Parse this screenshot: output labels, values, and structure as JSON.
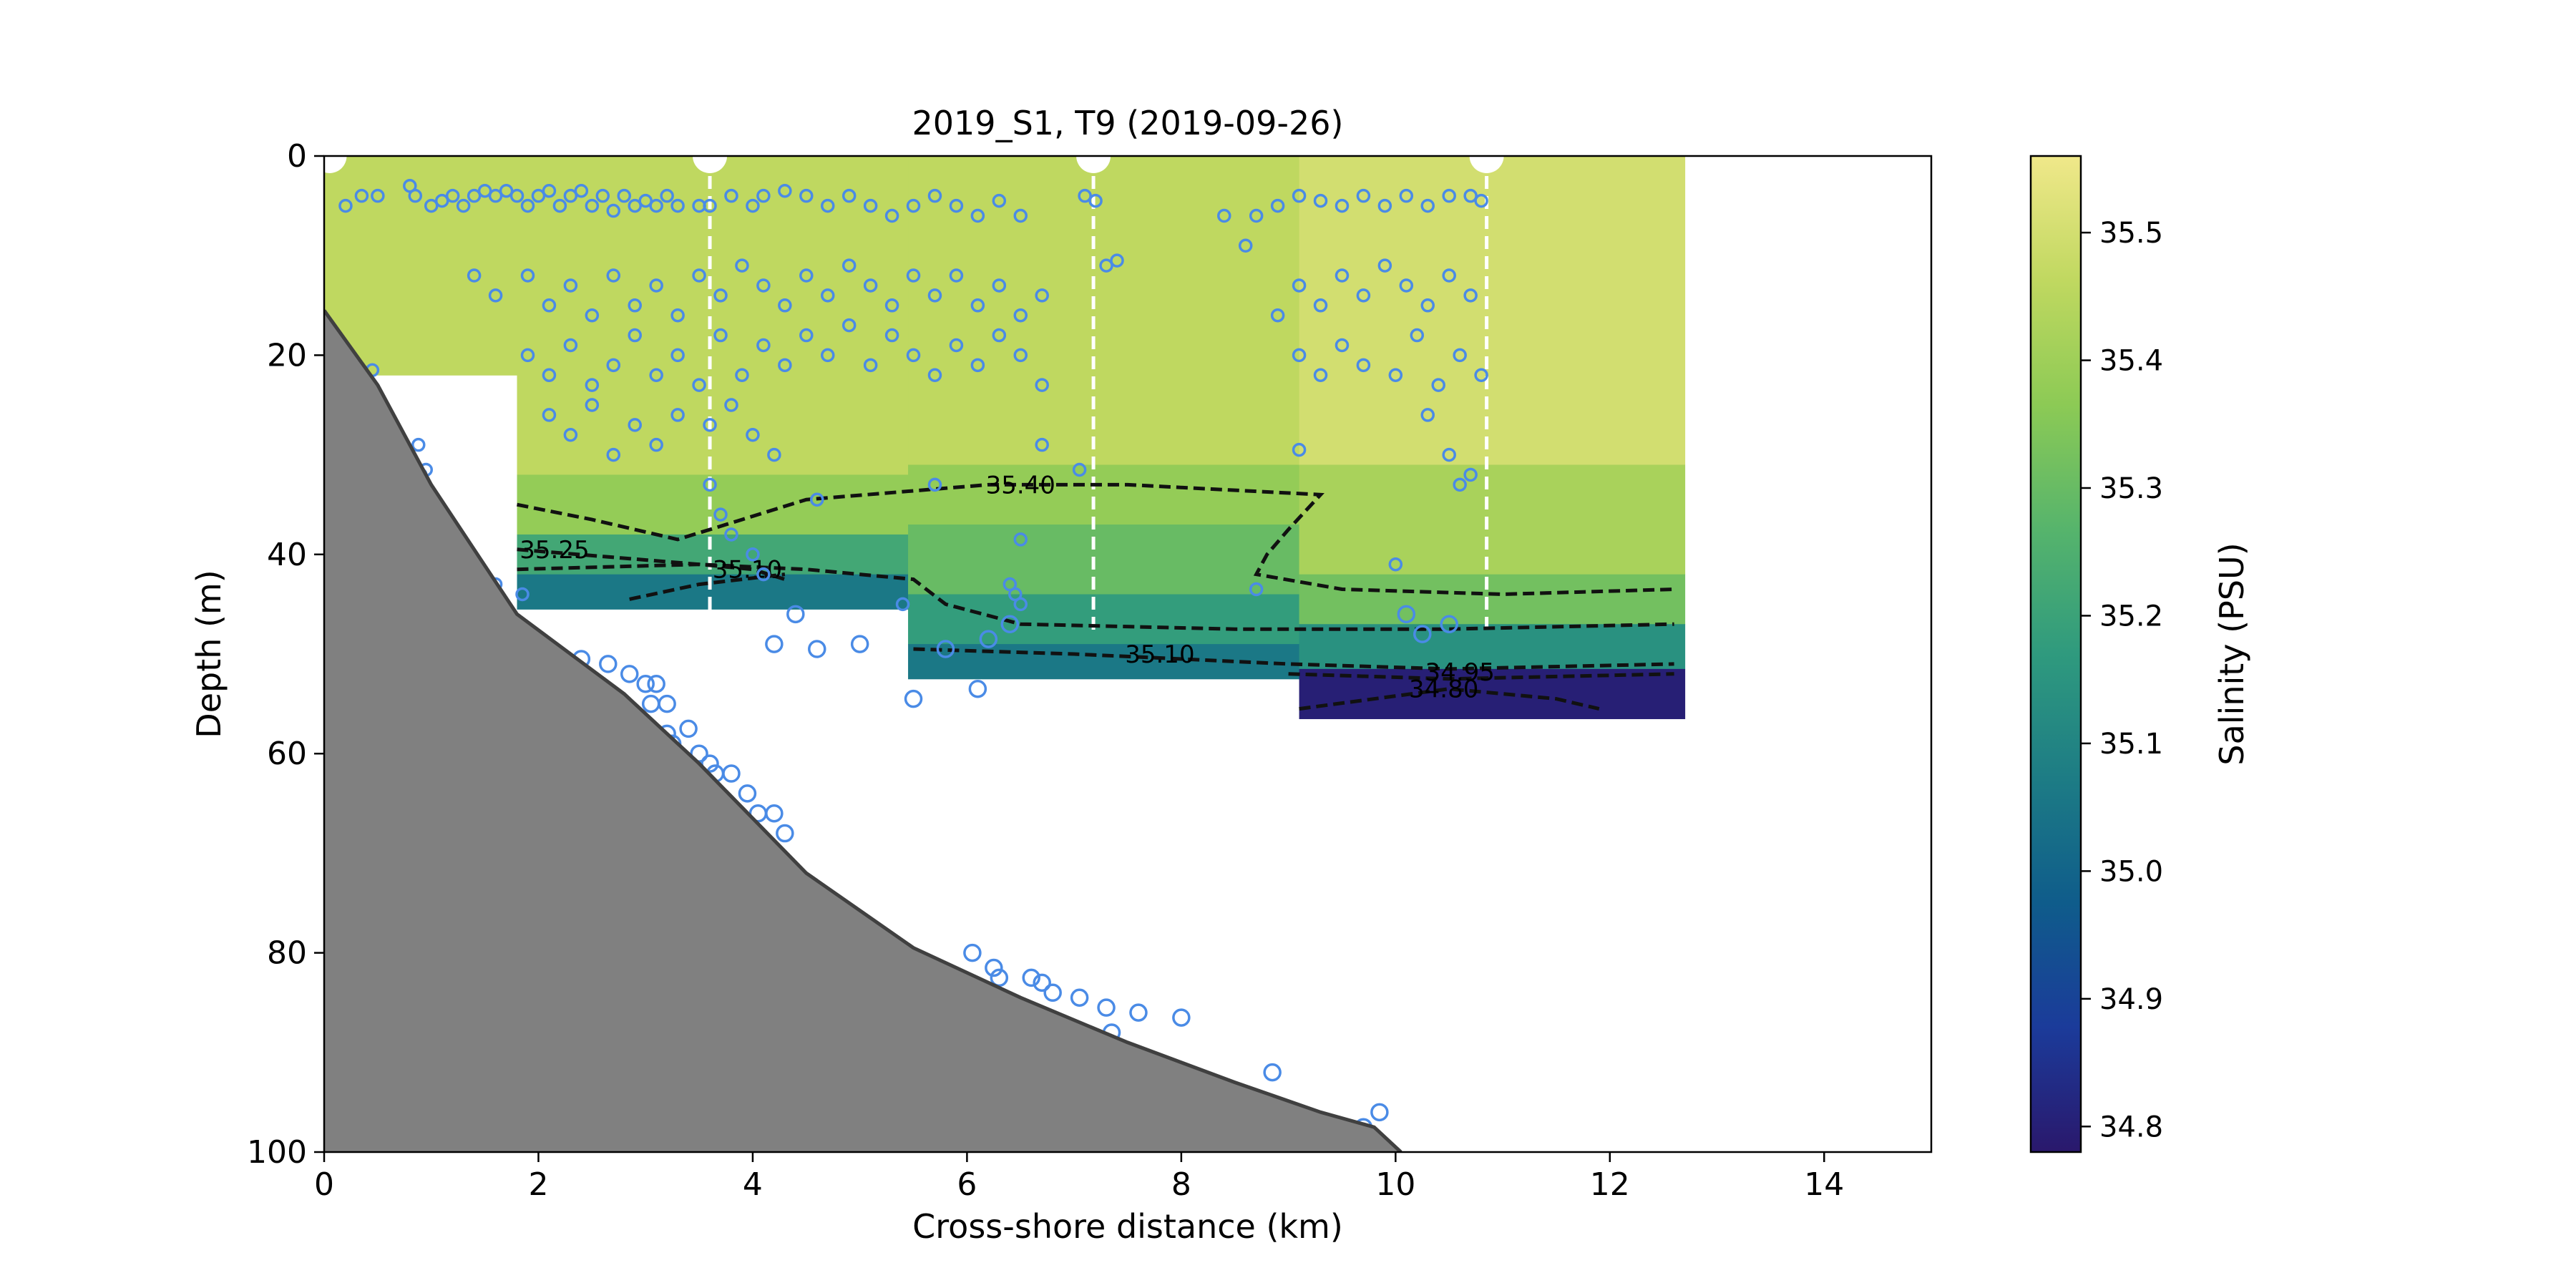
{
  "chart_data": {
    "type": "heatmap",
    "title": "2019_S1, T9 (2019-09-26)",
    "xlabel": "Cross-shore distance (km)",
    "ylabel": "Depth (m)",
    "xlim": [
      0,
      15
    ],
    "ylim": [
      100,
      0
    ],
    "x_ticks": [
      0,
      2,
      4,
      6,
      8,
      10,
      12,
      14
    ],
    "y_ticks": [
      0,
      20,
      40,
      60,
      80,
      100
    ],
    "grid": false,
    "colorbar": {
      "label": "Salinity (PSU)",
      "range": [
        34.78,
        35.56
      ],
      "ticks": [
        34.8,
        34.9,
        35.0,
        35.1,
        35.2,
        35.3,
        35.4,
        35.5
      ],
      "colormap": "haline",
      "stops": [
        "#2a186c",
        "#1b3b9a",
        "#0f5c8b",
        "#1d7c85",
        "#2f9a7e",
        "#56b46c",
        "#8cca55",
        "#c0d860",
        "#f0e88a"
      ]
    },
    "salinity_field": [
      {
        "x": [
          0,
          1.8
        ],
        "y": [
          0,
          22
        ],
        "salinity": 35.46
      },
      {
        "x": [
          1.8,
          5.45
        ],
        "y": [
          0,
          32
        ],
        "salinity": 35.46
      },
      {
        "x": [
          1.8,
          5.45
        ],
        "y": [
          32,
          38
        ],
        "salinity": 35.38
      },
      {
        "x": [
          1.8,
          5.45
        ],
        "y": [
          38,
          42
        ],
        "salinity": 35.22
      },
      {
        "x": [
          1.8,
          5.45
        ],
        "y": [
          42,
          45.5
        ],
        "salinity": 35.06
      },
      {
        "x": [
          5.45,
          9.1
        ],
        "y": [
          0,
          31
        ],
        "salinity": 35.46
      },
      {
        "x": [
          5.45,
          9.1
        ],
        "y": [
          31,
          37
        ],
        "salinity": 35.38
      },
      {
        "x": [
          5.45,
          9.1
        ],
        "y": [
          37,
          44
        ],
        "salinity": 35.3
      },
      {
        "x": [
          5.45,
          9.1
        ],
        "y": [
          44,
          49
        ],
        "salinity": 35.18
      },
      {
        "x": [
          5.45,
          9.1
        ],
        "y": [
          49,
          52.5
        ],
        "salinity": 35.06
      },
      {
        "x": [
          9.1,
          12.7
        ],
        "y": [
          0,
          31
        ],
        "salinity": 35.5
      },
      {
        "x": [
          9.1,
          12.7
        ],
        "y": [
          31,
          42
        ],
        "salinity": 35.42
      },
      {
        "x": [
          9.1,
          12.7
        ],
        "y": [
          42,
          47
        ],
        "salinity": 35.32
      },
      {
        "x": [
          9.1,
          12.7
        ],
        "y": [
          47,
          51.5
        ],
        "salinity": 35.14
      },
      {
        "x": [
          9.1,
          12.7
        ],
        "y": [
          51.5,
          56.5
        ],
        "salinity": 34.8
      }
    ],
    "contours": [
      {
        "level": "35.40",
        "points": [
          [
            1.8,
            35
          ],
          [
            2.5,
            36.5
          ],
          [
            3.3,
            38.5
          ],
          [
            3.9,
            36.5
          ],
          [
            4.5,
            34.5
          ],
          [
            6.2,
            33
          ],
          [
            7.5,
            33
          ],
          [
            9.3,
            34
          ],
          [
            9.0,
            37.5
          ],
          [
            8.8,
            40
          ],
          [
            8.7,
            42
          ],
          [
            9.5,
            43.5
          ],
          [
            11.0,
            44
          ],
          [
            12.6,
            43.5
          ]
        ],
        "label_at": [
          6.5,
          33
        ]
      },
      {
        "level": "35.25",
        "points": [
          [
            1.8,
            39.5
          ],
          [
            3.5,
            41
          ],
          [
            4.5,
            41.5
          ],
          [
            5.5,
            42.5
          ],
          [
            5.8,
            45
          ],
          [
            6.5,
            47
          ],
          [
            8.5,
            47.5
          ],
          [
            10.5,
            47.5
          ],
          [
            12.6,
            47
          ]
        ],
        "label_at": [
          2.15,
          39.5
        ]
      },
      {
        "level": "35.10",
        "points": [
          [
            5.5,
            49.5
          ],
          [
            7.0,
            50
          ],
          [
            9.0,
            51
          ],
          [
            10.5,
            51.5
          ],
          [
            12.6,
            51
          ]
        ],
        "label_at": [
          7.8,
          50
        ]
      },
      {
        "level": "35.10",
        "points": [
          [
            1.8,
            41.5
          ],
          [
            3.5,
            41
          ],
          [
            4.0,
            41.5
          ],
          [
            4.3,
            42.5
          ]
        ],
        "label_at": [
          3.95,
          41.5
        ]
      },
      {
        "level": "35.10",
        "points": [
          [
            2.85,
            44.5
          ],
          [
            3.5,
            43
          ],
          [
            4.3,
            42
          ]
        ],
        "label_at": null
      },
      {
        "level": "34.95",
        "points": [
          [
            9.0,
            52
          ],
          [
            10.5,
            52.5
          ],
          [
            12.6,
            52
          ]
        ],
        "label_at": [
          10.6,
          51.8
        ]
      },
      {
        "level": "34.80",
        "points": [
          [
            9.1,
            55.5
          ],
          [
            10.5,
            53.5
          ],
          [
            11.5,
            54.5
          ],
          [
            11.9,
            55.5
          ]
        ],
        "label_at": [
          10.45,
          53.5
        ]
      }
    ],
    "station_lines_x": [
      3.6,
      7.18,
      10.85
    ],
    "station_markers_x": [
      0.05,
      3.6,
      7.18,
      10.85
    ],
    "seafloor": [
      [
        0,
        15.5
      ],
      [
        0.5,
        23
      ],
      [
        1.0,
        33
      ],
      [
        1.8,
        46
      ],
      [
        2.8,
        54
      ],
      [
        3.5,
        61
      ],
      [
        4.5,
        72
      ],
      [
        5.5,
        79.5
      ],
      [
        6.5,
        84.5
      ],
      [
        7.5,
        89
      ],
      [
        8.5,
        93
      ],
      [
        9.3,
        96
      ],
      [
        9.8,
        97.5
      ],
      [
        10.05,
        100
      ],
      [
        0,
        100
      ]
    ],
    "points": [
      [
        0.2,
        5
      ],
      [
        0.35,
        4
      ],
      [
        0.5,
        4
      ],
      [
        0.8,
        3
      ],
      [
        0.85,
        4
      ],
      [
        1.0,
        5
      ],
      [
        1.1,
        4.5
      ],
      [
        1.2,
        4
      ],
      [
        1.3,
        5
      ],
      [
        1.4,
        4
      ],
      [
        1.5,
        3.5
      ],
      [
        1.6,
        4
      ],
      [
        1.7,
        3.5
      ],
      [
        1.8,
        4
      ],
      [
        1.9,
        5
      ],
      [
        2.0,
        4
      ],
      [
        2.1,
        3.5
      ],
      [
        2.2,
        5
      ],
      [
        2.3,
        4
      ],
      [
        2.4,
        3.5
      ],
      [
        2.5,
        5
      ],
      [
        2.6,
        4
      ],
      [
        2.7,
        5.5
      ],
      [
        2.8,
        4
      ],
      [
        2.9,
        5
      ],
      [
        3.0,
        4.5
      ],
      [
        3.1,
        5
      ],
      [
        3.2,
        4
      ],
      [
        3.3,
        5
      ],
      [
        3.5,
        5
      ],
      [
        3.6,
        5
      ],
      [
        3.8,
        4
      ],
      [
        4.0,
        5
      ],
      [
        4.1,
        4
      ],
      [
        4.3,
        3.5
      ],
      [
        4.5,
        4
      ],
      [
        4.7,
        5
      ],
      [
        4.9,
        4
      ],
      [
        5.1,
        5
      ],
      [
        5.3,
        6
      ],
      [
        5.5,
        5
      ],
      [
        5.7,
        4
      ],
      [
        5.9,
        5
      ],
      [
        6.1,
        6
      ],
      [
        6.3,
        4.5
      ],
      [
        6.5,
        6
      ],
      [
        7.1,
        4
      ],
      [
        7.2,
        4.5
      ],
      [
        8.4,
        6
      ],
      [
        8.7,
        6
      ],
      [
        8.9,
        5
      ],
      [
        9.1,
        4
      ],
      [
        9.3,
        4.5
      ],
      [
        9.5,
        5
      ],
      [
        9.7,
        4
      ],
      [
        9.9,
        5
      ],
      [
        10.1,
        4
      ],
      [
        10.3,
        5
      ],
      [
        10.5,
        4
      ],
      [
        10.7,
        4
      ],
      [
        10.8,
        4.5
      ],
      [
        1.4,
        12
      ],
      [
        1.6,
        14
      ],
      [
        1.9,
        12
      ],
      [
        2.1,
        15
      ],
      [
        2.3,
        13
      ],
      [
        2.5,
        16
      ],
      [
        2.7,
        12
      ],
      [
        2.9,
        15
      ],
      [
        3.1,
        13
      ],
      [
        3.3,
        16
      ],
      [
        3.5,
        12
      ],
      [
        3.7,
        14
      ],
      [
        3.9,
        11
      ],
      [
        4.1,
        13
      ],
      [
        4.3,
        15
      ],
      [
        4.5,
        12
      ],
      [
        4.7,
        14
      ],
      [
        4.9,
        11
      ],
      [
        5.1,
        13
      ],
      [
        5.3,
        15
      ],
      [
        5.5,
        12
      ],
      [
        5.7,
        14
      ],
      [
        5.9,
        12
      ],
      [
        6.1,
        15
      ],
      [
        6.3,
        13
      ],
      [
        6.5,
        16
      ],
      [
        6.7,
        14
      ],
      [
        7.3,
        11
      ],
      [
        7.4,
        10.5
      ],
      [
        8.6,
        9
      ],
      [
        8.9,
        16
      ],
      [
        9.1,
        13
      ],
      [
        9.3,
        15
      ],
      [
        9.5,
        12
      ],
      [
        9.7,
        14
      ],
      [
        9.9,
        11
      ],
      [
        10.1,
        13
      ],
      [
        10.3,
        15
      ],
      [
        10.5,
        12
      ],
      [
        10.7,
        14
      ],
      [
        1.9,
        20
      ],
      [
        2.1,
        22
      ],
      [
        2.3,
        19
      ],
      [
        2.5,
        23
      ],
      [
        2.7,
        21
      ],
      [
        2.9,
        18
      ],
      [
        3.1,
        22
      ],
      [
        3.3,
        20
      ],
      [
        3.5,
        23
      ],
      [
        3.7,
        18
      ],
      [
        3.9,
        22
      ],
      [
        4.1,
        19
      ],
      [
        4.3,
        21
      ],
      [
        4.5,
        18
      ],
      [
        4.7,
        20
      ],
      [
        4.9,
        17
      ],
      [
        5.1,
        21
      ],
      [
        5.3,
        18
      ],
      [
        5.5,
        20
      ],
      [
        5.7,
        22
      ],
      [
        5.9,
        19
      ],
      [
        6.1,
        21
      ],
      [
        6.3,
        18
      ],
      [
        6.5,
        20
      ],
      [
        6.7,
        23
      ],
      [
        9.1,
        20
      ],
      [
        9.3,
        22
      ],
      [
        9.5,
        19
      ],
      [
        9.7,
        21
      ],
      [
        10.0,
        22
      ],
      [
        10.2,
        18
      ],
      [
        10.4,
        23
      ],
      [
        10.6,
        20
      ],
      [
        10.8,
        22
      ],
      [
        2.1,
        26
      ],
      [
        2.3,
        28
      ],
      [
        2.5,
        25
      ],
      [
        2.7,
        30
      ],
      [
        2.9,
        27
      ],
      [
        3.1,
        29
      ],
      [
        3.3,
        26
      ],
      [
        3.6,
        27
      ],
      [
        3.8,
        25
      ],
      [
        4.0,
        28
      ],
      [
        4.2,
        30
      ],
      [
        6.7,
        29
      ],
      [
        9.1,
        29.5
      ],
      [
        10.3,
        26
      ],
      [
        10.5,
        30
      ],
      [
        10.6,
        33
      ],
      [
        10.7,
        32
      ],
      [
        3.6,
        33
      ],
      [
        3.7,
        36
      ],
      [
        3.8,
        38
      ],
      [
        4.0,
        40
      ],
      [
        4.1,
        42
      ],
      [
        4.6,
        34.5
      ],
      [
        5.7,
        33
      ],
      [
        7.05,
        31.5
      ],
      [
        6.5,
        38.5
      ],
      [
        10.0,
        41
      ],
      [
        1.35,
        42
      ],
      [
        1.6,
        43
      ],
      [
        1.85,
        44
      ],
      [
        4.4,
        46
      ],
      [
        4.2,
        49
      ],
      [
        4.6,
        49.5
      ],
      [
        5.0,
        49
      ],
      [
        5.4,
        45
      ],
      [
        5.5,
        54.5
      ],
      [
        6.1,
        53.5
      ],
      [
        6.4,
        43
      ],
      [
        6.45,
        44
      ],
      [
        6.5,
        45
      ],
      [
        6.4,
        47
      ],
      [
        6.2,
        48.5
      ],
      [
        5.8,
        49.5
      ],
      [
        8.7,
        43.5
      ],
      [
        10.1,
        46
      ],
      [
        10.25,
        48
      ],
      [
        10.5,
        47
      ],
      [
        0.45,
        21.5
      ],
      [
        0.9,
        32
      ],
      [
        0.95,
        31.5
      ],
      [
        1.1,
        36
      ],
      [
        2.4,
        50.5
      ],
      [
        2.65,
        51
      ],
      [
        2.85,
        52
      ],
      [
        3.0,
        53
      ],
      [
        3.1,
        53
      ],
      [
        3.05,
        55
      ],
      [
        3.2,
        55
      ],
      [
        3.4,
        57.5
      ],
      [
        3.2,
        58
      ],
      [
        3.25,
        59
      ],
      [
        3.5,
        60
      ],
      [
        3.6,
        61
      ],
      [
        3.65,
        62
      ],
      [
        3.8,
        62
      ],
      [
        3.95,
        64
      ],
      [
        4.05,
        66
      ],
      [
        4.2,
        66
      ],
      [
        4.3,
        68
      ],
      [
        6.6,
        82.5
      ],
      [
        6.7,
        83
      ],
      [
        6.8,
        84
      ],
      [
        7.05,
        84.5
      ],
      [
        7.3,
        85.5
      ],
      [
        7.35,
        88
      ],
      [
        7.6,
        86
      ],
      [
        8.0,
        86.5
      ],
      [
        6.05,
        80
      ],
      [
        6.25,
        81.5
      ],
      [
        6.3,
        82.5
      ],
      [
        8.85,
        92
      ],
      [
        9.85,
        96
      ],
      [
        9.7,
        97.5
      ],
      [
        0.88,
        29
      ],
      [
        1.35,
        41.5
      ]
    ]
  }
}
